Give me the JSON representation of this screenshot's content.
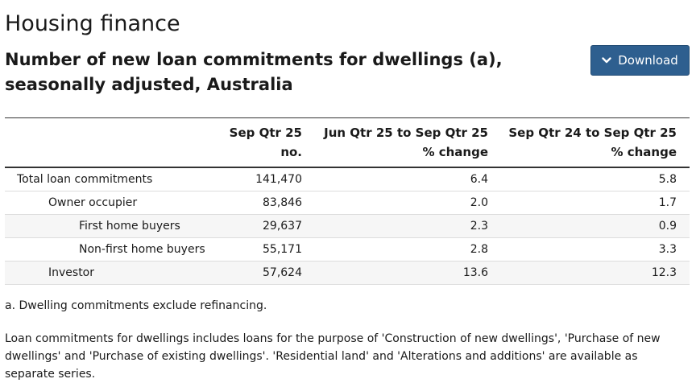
{
  "page": {
    "title": "Housing finance",
    "table_title": "Number of new loan commitments for dwellings (a), seasonally adjusted, Australia",
    "download_label": "Download"
  },
  "table": {
    "headers": [
      {
        "line1": "",
        "line2": ""
      },
      {
        "line1": "Sep Qtr 25",
        "line2": "no."
      },
      {
        "line1": "Jun Qtr 25 to Sep Qtr 25",
        "line2": "% change"
      },
      {
        "line1": "Sep Qtr 24 to Sep Qtr 25",
        "line2": "% change"
      }
    ],
    "rows": [
      {
        "label": "Total loan commitments",
        "level": 0,
        "value": "141,470",
        "qtr_change": "6.4",
        "year_change": "5.8"
      },
      {
        "label": "Owner occupier",
        "level": 1,
        "value": "83,846",
        "qtr_change": "2.0",
        "year_change": "1.7"
      },
      {
        "label": "First home buyers",
        "level": 2,
        "value": "29,637",
        "qtr_change": "2.3",
        "year_change": "0.9"
      },
      {
        "label": "Non-first home buyers",
        "level": 2,
        "value": "55,171",
        "qtr_change": "2.8",
        "year_change": "3.3"
      },
      {
        "label": "Investor",
        "level": 1,
        "value": "57,624",
        "qtr_change": "13.6",
        "year_change": "12.3"
      }
    ]
  },
  "notes": {
    "footnote": "a. Dwelling commitments exclude refinancing.",
    "description": "Loan commitments for dwellings includes loans for the purpose of 'Construction of new dwellings', 'Purchase of new dwellings' and 'Purchase of existing dwellings'. 'Residential land' and 'Alterations and additions' are available as separate series."
  },
  "icons": {
    "download": "chevron-down-icon"
  },
  "colors": {
    "button_bg": "#2e5f8f",
    "stripe": "#f6f6f6"
  }
}
